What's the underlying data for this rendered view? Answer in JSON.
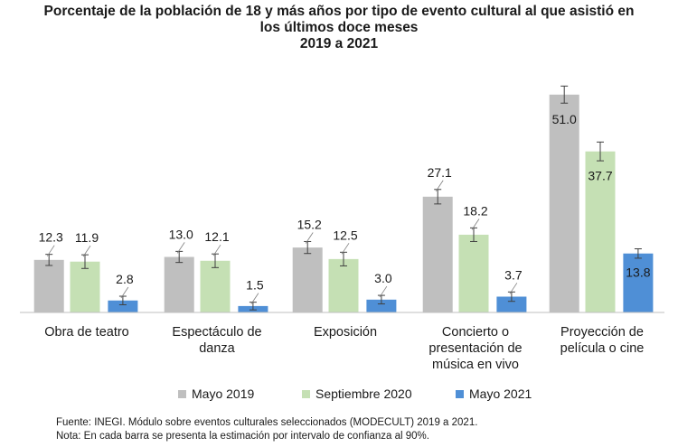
{
  "chart_data": {
    "type": "bar",
    "title_lines": [
      "Porcentaje de la población de 18 y más años por tipo de evento cultural al que asistió en",
      "los últimos doce meses",
      "2019 a 2021"
    ],
    "categories": [
      [
        "Obra de teatro"
      ],
      [
        "Espectáculo de",
        "danza"
      ],
      [
        "Exposición"
      ],
      [
        "Concierto o",
        "presentación de",
        "música en vivo"
      ],
      [
        "Proyección de",
        "película o cine"
      ]
    ],
    "series": [
      {
        "name": "Mayo 2019",
        "color": "#bfbfbf",
        "values": [
          12.3,
          13.0,
          15.2,
          27.1,
          51.0
        ]
      },
      {
        "name": "Septiembre 2020",
        "color": "#c5e0b4",
        "values": [
          11.9,
          12.1,
          12.5,
          18.2,
          37.7
        ]
      },
      {
        "name": "Mayo 2021",
        "color": "#4f8fd6",
        "values": [
          2.8,
          1.5,
          3.0,
          3.7,
          13.8
        ]
      }
    ],
    "value_labels": [
      [
        "12.3",
        "13.0",
        "15.2",
        "27.1",
        "51.0"
      ],
      [
        "11.9",
        "12.1",
        "12.5",
        "18.2",
        "37.7"
      ],
      [
        "2.8",
        "1.5",
        "3.0",
        "3.7",
        "13.8"
      ]
    ],
    "error_margin": [
      [
        1.3,
        1.3,
        1.4,
        1.7,
        2.0
      ],
      [
        1.6,
        1.6,
        1.6,
        1.6,
        2.2
      ],
      [
        1.0,
        0.9,
        1.0,
        1.1,
        1.1
      ]
    ],
    "ylim": [
      0,
      55
    ],
    "grid": false,
    "legend_position": "bottom"
  },
  "footnotes": {
    "source": "Fuente: INEGI. Módulo sobre eventos culturales seleccionados (MODECULT) 2019 a 2021.",
    "note": "Nota: En cada barra se presenta la estimación por intervalo de confianza al 90%."
  }
}
